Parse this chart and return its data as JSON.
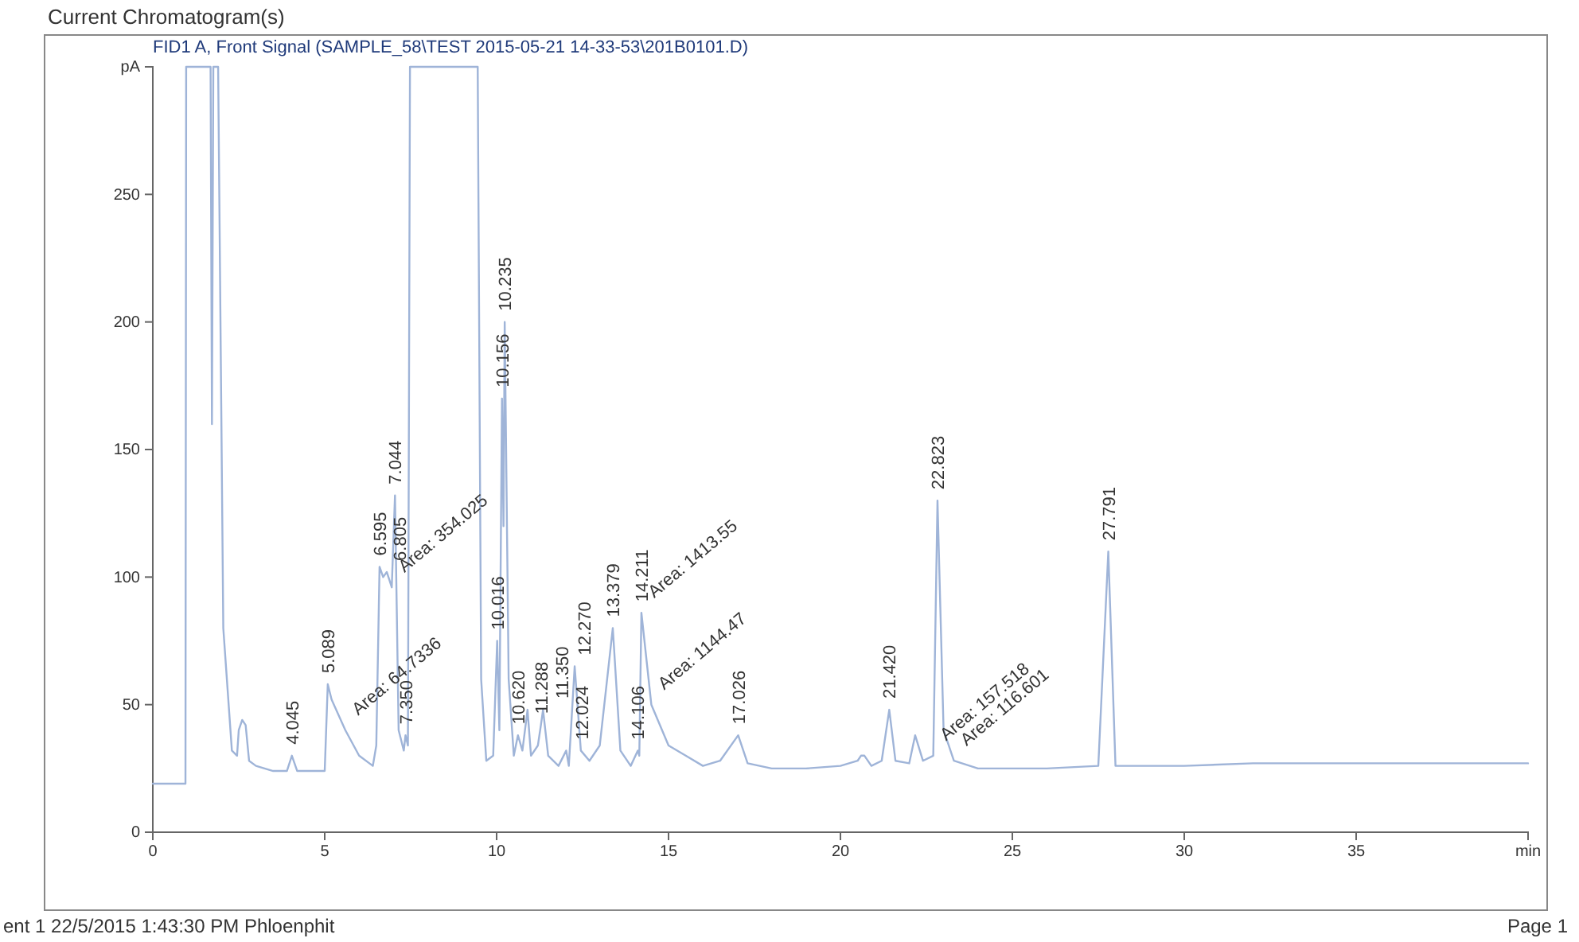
{
  "chart_data": {
    "type": "line",
    "title": "Current Chromatogram(s)",
    "subtitle": "FID1 A, Front Signal (SAMPLE_58\\TEST 2015-05-21 14-33-53\\201B0101.D)",
    "xlim": [
      0,
      40
    ],
    "xticks": [
      0,
      5,
      10,
      15,
      20,
      25,
      30,
      35,
      {
        "value": 40,
        "label": "min"
      }
    ],
    "ylim": [
      0,
      300
    ],
    "yticks": [
      0,
      50,
      100,
      150,
      200,
      250,
      {
        "value": 300,
        "label": "pA"
      }
    ],
    "grid": false,
    "marker": "none",
    "line_style": "solid",
    "series": [
      {
        "color": "#9fb4d8",
        "x": [
          0,
          0.95,
          0.97,
          1.68,
          1.72,
          1.76,
          1.82,
          1.9,
          2.05,
          2.3,
          2.45,
          2.5,
          2.6,
          2.7,
          2.8,
          3.0,
          3.5,
          3.9,
          4.045,
          4.2,
          4.8,
          5.0,
          5.089,
          5.2,
          5.6,
          6.0,
          6.4,
          6.5,
          6.595,
          6.7,
          6.805,
          6.95,
          7.044,
          7.15,
          7.3,
          7.35,
          7.42,
          7.48,
          9.45,
          9.55,
          9.7,
          9.9,
          10.016,
          10.08,
          10.156,
          10.2,
          10.235,
          10.35,
          10.5,
          10.62,
          10.75,
          10.899,
          11.0,
          11.2,
          11.288,
          11.35,
          11.5,
          11.8,
          12.024,
          12.1,
          12.27,
          12.45,
          12.7,
          13.0,
          13.379,
          13.6,
          13.9,
          14.106,
          14.15,
          14.211,
          14.5,
          15.0,
          15.5,
          16.0,
          16.5,
          17.026,
          17.3,
          18.0,
          19.0,
          20.0,
          20.5,
          20.598,
          20.698,
          20.9,
          21.2,
          21.42,
          21.6,
          22.0,
          22.173,
          22.4,
          22.7,
          22.823,
          23.0,
          23.3,
          24.0,
          25.0,
          26.0,
          27.5,
          27.791,
          28.0,
          29.0,
          30.0,
          32.0,
          35.0,
          40.0
        ],
        "values": [
          19,
          19,
          300,
          300,
          160,
          300,
          300,
          300,
          80,
          32,
          30,
          40,
          44,
          42,
          28,
          26,
          24,
          24,
          30,
          24,
          24,
          24,
          58,
          52,
          40,
          30,
          26,
          34,
          104,
          100,
          102,
          96,
          132,
          40,
          32,
          38,
          34,
          300,
          300,
          60,
          28,
          30,
          75,
          40,
          170,
          120,
          200,
          60,
          30,
          38,
          32,
          48,
          30,
          34,
          42,
          48,
          30,
          26,
          32,
          26,
          65,
          32,
          28,
          34,
          80,
          32,
          26,
          32,
          30,
          86,
          50,
          34,
          30,
          26,
          28,
          38,
          27,
          25,
          25,
          26,
          28,
          30,
          30,
          26,
          28,
          48,
          28,
          27,
          38,
          28,
          30,
          130,
          40,
          28,
          25,
          25,
          25,
          26,
          110,
          26,
          26,
          26,
          27,
          27,
          27
        ]
      }
    ],
    "annotations": [
      {
        "text": "4.045",
        "x": 4.045,
        "y": 30
      },
      {
        "text": "5.089",
        "x": 5.089,
        "y": 58
      },
      {
        "text": "6.595",
        "x": 6.595,
        "y": 104
      },
      {
        "text": "6.805",
        "x": 6.805,
        "y": 102
      },
      {
        "text": "7.044",
        "x": 7.044,
        "y": 132
      },
      {
        "text": "7.350",
        "x": 7.35,
        "y": 38
      },
      {
        "text": "10.016",
        "x": 10.016,
        "y": 75
      },
      {
        "text": "10.156",
        "x": 10.156,
        "y": 170
      },
      {
        "text": "10.235",
        "x": 10.235,
        "y": 200
      },
      {
        "text": "10.620",
        "x": 10.62,
        "y": 38
      },
      {
        "text": "11.288",
        "x": 11.288,
        "y": 42
      },
      {
        "text": "11.350",
        "x": 11.35,
        "y": 48
      },
      {
        "text": "12.024",
        "x": 12.024,
        "y": 32
      },
      {
        "text": "12.270",
        "x": 12.27,
        "y": 65
      },
      {
        "text": "13.379",
        "x": 13.379,
        "y": 80
      },
      {
        "text": "14.106",
        "x": 14.106,
        "y": 32
      },
      {
        "text": "14.211",
        "x": 14.211,
        "y": 86
      },
      {
        "text": "17.026",
        "x": 17.026,
        "y": 38
      },
      {
        "text": "21.420",
        "x": 21.42,
        "y": 48
      },
      {
        "text": "22.823",
        "x": 22.823,
        "y": 130
      },
      {
        "text": "27.791",
        "x": 27.791,
        "y": 110
      },
      {
        "text": "Area: 64.7336",
        "x": 5.6,
        "y": 40
      },
      {
        "text": "Area: 354.025",
        "x": 6.95,
        "y": 96
      },
      {
        "text": "Area: 1144.47",
        "x": 14.5,
        "y": 50
      },
      {
        "text": "Area: 1413.55",
        "x": 14.211,
        "y": 86
      },
      {
        "text": "Area: 157.518",
        "x": 22.7,
        "y": 30
      },
      {
        "text": "Area: 116.601",
        "x": 23.3,
        "y": 28
      },
      "ent 1 22/5/2015 1:43:30 PM Phloenphit",
      "Page 1"
    ]
  }
}
